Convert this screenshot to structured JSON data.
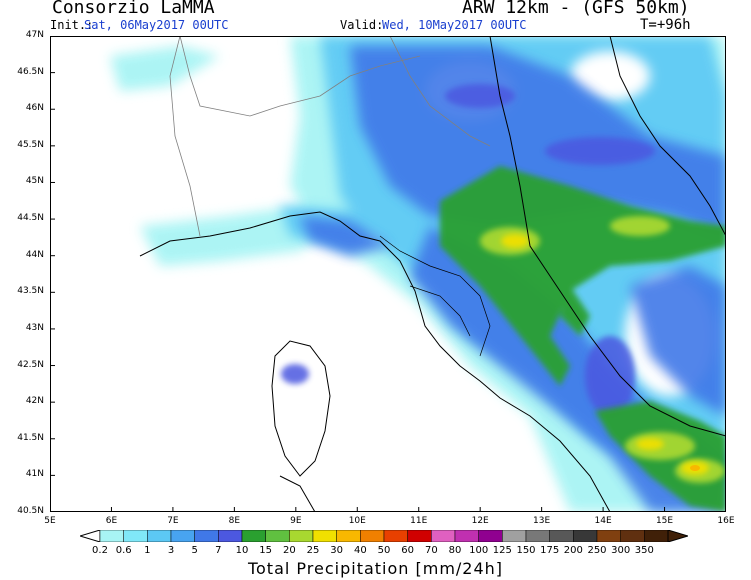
{
  "header": {
    "organization": "Consorzio LaMMA",
    "model": "ARW 12km - (GFS 50km)",
    "init_label": "Init.:",
    "init_value": "Sat, 06May2017 00UTC",
    "valid_label": "Valid:",
    "valid_value": "Wed, 10May2017 00UTC",
    "timestep": "T=+96h"
  },
  "map": {
    "lat_ticks": [
      "47N",
      "46.5N",
      "46N",
      "45.5N",
      "45N",
      "44.5N",
      "44N",
      "43.5N",
      "43N",
      "42.5N",
      "42N",
      "41.5N",
      "41N",
      "40.5N"
    ],
    "lon_ticks": [
      "5E",
      "6E",
      "7E",
      "8E",
      "9E",
      "10E",
      "11E",
      "12E",
      "13E",
      "14E",
      "15E",
      "16E"
    ]
  },
  "colorbar": {
    "title": "Total Precipitation [mm/24h]",
    "labels": [
      "0.2",
      "0.6",
      "1",
      "3",
      "5",
      "7",
      "10",
      "15",
      "20",
      "25",
      "30",
      "40",
      "50",
      "60",
      "70",
      "80",
      "100",
      "125",
      "150",
      "175",
      "200",
      "250",
      "300",
      "350"
    ],
    "colors": [
      "#a8f4f4",
      "#80e8f8",
      "#5cc8f4",
      "#48a4f0",
      "#4078e8",
      "#4c58e0",
      "#2aa030",
      "#60c040",
      "#a8d830",
      "#f0e000",
      "#f8b800",
      "#f08000",
      "#e84000",
      "#d00000",
      "#e060c0",
      "#c030b0",
      "#900090",
      "#a0a0a0",
      "#787878",
      "#585858",
      "#383838",
      "#804010",
      "#603010",
      "#402008"
    ]
  }
}
